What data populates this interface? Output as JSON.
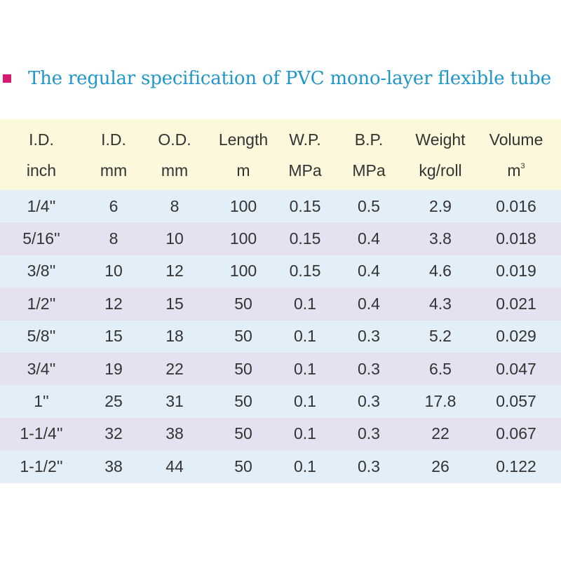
{
  "colors": {
    "title_text": "#2196c9",
    "bullet": "#d8176e",
    "header_bg": "#fbf8dc",
    "row_blue": "#e2eff9",
    "row_purple": "#e6e1f0",
    "text": "#333333"
  },
  "title": "The regular specification of PVC mono-layer flexible tube",
  "headers": [
    {
      "line1": "I.D.",
      "line2": "inch",
      "sup": ""
    },
    {
      "line1": "I.D.",
      "line2": "mm",
      "sup": ""
    },
    {
      "line1": "O.D.",
      "line2": "mm",
      "sup": ""
    },
    {
      "line1": "Length",
      "line2": "m",
      "sup": ""
    },
    {
      "line1": "W.P.",
      "line2": "MPa",
      "sup": ""
    },
    {
      "line1": "B.P.",
      "line2": "MPa",
      "sup": ""
    },
    {
      "line1": "Weight",
      "line2": "kg/roll",
      "sup": ""
    },
    {
      "line1": "Volume",
      "line2": "m",
      "sup": "3"
    }
  ],
  "rows": [
    [
      "1/4''",
      "6",
      "8",
      "100",
      "0.15",
      "0.5",
      "2.9",
      "0.016"
    ],
    [
      "5/16''",
      "8",
      "10",
      "100",
      "0.15",
      "0.4",
      "3.8",
      "0.018"
    ],
    [
      "3/8''",
      "10",
      "12",
      "100",
      "0.15",
      "0.4",
      "4.6",
      "0.019"
    ],
    [
      "1/2''",
      "12",
      "15",
      "50",
      "0.1",
      "0.4",
      "4.3",
      "0.021"
    ],
    [
      "5/8''",
      "15",
      "18",
      "50",
      "0.1",
      "0.3",
      "5.2",
      "0.029"
    ],
    [
      "3/4''",
      "19",
      "22",
      "50",
      "0.1",
      "0.3",
      "6.5",
      "0.047"
    ],
    [
      "1''",
      "25",
      "31",
      "50",
      "0.1",
      "0.3",
      "17.8",
      "0.057"
    ],
    [
      "1-1/4''",
      "32",
      "38",
      "50",
      "0.1",
      "0.3",
      "22",
      "0.067"
    ],
    [
      "1-1/2''",
      "38",
      "44",
      "50",
      "0.1",
      "0.3",
      "26",
      "0.122"
    ]
  ]
}
